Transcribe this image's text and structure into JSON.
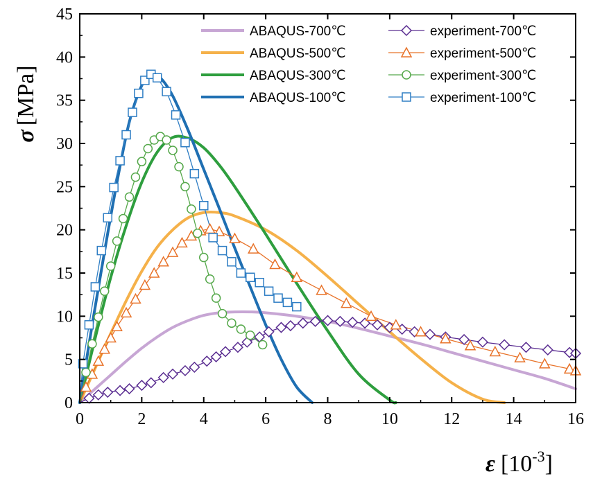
{
  "chart_data": {
    "type": "line",
    "xlabel_symbol": "ε",
    "xlabel_unit": "[10",
    "xlabel_exp": "-3",
    "xlabel_close": "]",
    "ylabel_symbol": "σ",
    "ylabel_unit": "[MPa]",
    "xlim": [
      0,
      16
    ],
    "ylim": [
      0,
      45
    ],
    "xticks": [
      0,
      2,
      4,
      6,
      8,
      10,
      12,
      14,
      16
    ],
    "yticks": [
      0,
      5,
      10,
      15,
      20,
      25,
      30,
      35,
      40,
      45
    ],
    "series": [
      {
        "name": "ABAQUS-700℃",
        "kind": "model",
        "color": "#c7a6d4",
        "x": [
          0,
          0.5,
          1,
          1.5,
          2,
          2.5,
          3,
          3.5,
          4,
          4.5,
          5,
          5.5,
          6,
          7,
          8,
          9,
          10,
          11,
          12,
          13,
          14,
          15,
          16
        ],
        "y": [
          0,
          1.6,
          3.2,
          4.8,
          6.3,
          7.6,
          8.7,
          9.5,
          10.1,
          10.4,
          10.5,
          10.5,
          10.4,
          10.0,
          9.4,
          8.6,
          7.7,
          6.8,
          5.8,
          4.8,
          3.8,
          2.8,
          1.6
        ]
      },
      {
        "name": "ABAQUS-500℃",
        "kind": "model",
        "color": "#f5b14a",
        "x": [
          0,
          0.5,
          1,
          1.5,
          2,
          2.5,
          3,
          3.5,
          4,
          4.5,
          5,
          6,
          7,
          8,
          9,
          10,
          11,
          12,
          13,
          13.7
        ],
        "y": [
          0,
          4,
          8,
          11.8,
          15.2,
          18.0,
          20.0,
          21.4,
          22.0,
          22.0,
          21.6,
          20.0,
          17.6,
          14.6,
          11.4,
          8.2,
          5.1,
          2.3,
          0.4,
          0
        ]
      },
      {
        "name": "ABAQUS-300℃",
        "kind": "model",
        "color": "#2e9e3e",
        "x": [
          0,
          0.5,
          1,
          1.5,
          2,
          2.5,
          3,
          3.5,
          4,
          4.5,
          5,
          6,
          7,
          8,
          9,
          10,
          10.2
        ],
        "y": [
          0,
          7.5,
          14.5,
          20.5,
          25.5,
          29.0,
          30.7,
          30.6,
          29.5,
          27.5,
          25.0,
          19.5,
          13.8,
          8.3,
          3.3,
          0.3,
          0
        ]
      },
      {
        "name": "ABAQUS-100℃",
        "kind": "model",
        "color": "#1f6fb2",
        "x": [
          0,
          0.4,
          0.8,
          1.2,
          1.6,
          2.0,
          2.3,
          2.6,
          3.0,
          3.5,
          4.0,
          4.5,
          5.0,
          5.5,
          6.0,
          6.5,
          7.0,
          7.5
        ],
        "y": [
          0,
          9.0,
          17.5,
          25.5,
          32.5,
          36.7,
          38.0,
          37.6,
          35.5,
          31.5,
          27.0,
          22.5,
          17.9,
          13.4,
          9.0,
          5.0,
          1.8,
          0
        ]
      },
      {
        "name": "experiment-700℃",
        "kind": "experiment",
        "color": "#5a2d91",
        "marker": "diamond",
        "x": [
          0,
          0.3,
          0.6,
          0.9,
          1.3,
          1.6,
          2.0,
          2.3,
          2.7,
          3.0,
          3.4,
          3.7,
          4.1,
          4.4,
          4.7,
          5.1,
          5.4,
          5.8,
          6.1,
          6.5,
          6.8,
          7.2,
          7.6,
          8.0,
          8.4,
          8.8,
          9.2,
          9.6,
          10.0,
          10.4,
          10.8,
          11.3,
          11.8,
          12.4,
          13.0,
          13.7,
          14.4,
          15.1,
          15.8,
          16.0
        ],
        "y": [
          0,
          0.5,
          0.9,
          1.2,
          1.4,
          1.6,
          2.0,
          2.3,
          2.9,
          3.3,
          3.7,
          4.1,
          4.8,
          5.3,
          5.9,
          6.4,
          7.0,
          7.6,
          8.2,
          8.7,
          8.9,
          9.2,
          9.4,
          9.5,
          9.4,
          9.3,
          9.2,
          9.0,
          8.7,
          8.5,
          8.2,
          7.9,
          7.6,
          7.3,
          7.0,
          6.7,
          6.4,
          6.1,
          5.8,
          5.7
        ]
      },
      {
        "name": "experiment-500℃",
        "kind": "experiment",
        "color": "#e8732a",
        "marker": "triangle",
        "x": [
          0,
          0.2,
          0.4,
          0.6,
          0.8,
          1.0,
          1.2,
          1.5,
          1.8,
          2.1,
          2.4,
          2.7,
          3.0,
          3.3,
          3.6,
          3.9,
          4.2,
          4.5,
          5.0,
          5.6,
          6.3,
          7.0,
          7.8,
          8.6,
          9.4,
          10.2,
          11.0,
          11.8,
          12.6,
          13.4,
          14.2,
          15.0,
          15.8,
          16.0
        ],
        "y": [
          0,
          1.8,
          3.3,
          4.8,
          6.2,
          7.5,
          8.8,
          10.4,
          12.0,
          13.6,
          15.0,
          16.3,
          17.4,
          18.5,
          19.3,
          19.9,
          20.1,
          19.8,
          19.0,
          17.8,
          16.0,
          14.5,
          13.0,
          11.5,
          10.0,
          9.0,
          8.2,
          7.4,
          6.6,
          5.9,
          5.2,
          4.5,
          3.9,
          3.7
        ]
      },
      {
        "name": "experiment-300℃",
        "kind": "experiment",
        "color": "#55a84a",
        "marker": "circle",
        "x": [
          0,
          0.2,
          0.4,
          0.6,
          0.8,
          1.0,
          1.2,
          1.4,
          1.6,
          1.8,
          2.0,
          2.2,
          2.4,
          2.6,
          2.8,
          3.0,
          3.2,
          3.4,
          3.6,
          3.8,
          4.0,
          4.2,
          4.4,
          4.6,
          4.9,
          5.2,
          5.5,
          5.9
        ],
        "y": [
          0,
          3.5,
          6.8,
          9.9,
          12.9,
          15.8,
          18.7,
          21.3,
          23.8,
          26.1,
          27.9,
          29.4,
          30.4,
          30.8,
          30.4,
          29.2,
          27.3,
          25.0,
          22.4,
          19.6,
          16.8,
          14.3,
          12.1,
          10.3,
          9.2,
          8.5,
          7.8,
          6.7
        ]
      },
      {
        "name": "experiment-100℃",
        "kind": "experiment",
        "color": "#2f7ec4",
        "marker": "square",
        "x": [
          0,
          0.1,
          0.3,
          0.5,
          0.7,
          0.9,
          1.1,
          1.3,
          1.5,
          1.7,
          1.9,
          2.1,
          2.3,
          2.5,
          2.8,
          3.1,
          3.4,
          3.7,
          4.0,
          4.3,
          4.6,
          4.9,
          5.2,
          5.5,
          5.8,
          6.1,
          6.4,
          6.7,
          7.0
        ],
        "y": [
          0,
          4.5,
          9.0,
          13.4,
          17.6,
          21.4,
          24.9,
          28.0,
          31.0,
          33.6,
          35.8,
          37.3,
          38.0,
          37.6,
          36.0,
          33.3,
          30.1,
          26.5,
          22.8,
          19.1,
          17.6,
          16.3,
          15.0,
          14.5,
          13.9,
          12.9,
          12.1,
          11.6,
          11.1
        ]
      }
    ],
    "legend_position": "top-right",
    "legend_columns": [
      [
        "ABAQUS-700℃",
        "ABAQUS-500℃",
        "ABAQUS-300℃",
        "ABAQUS-100℃"
      ],
      [
        "experiment-700℃",
        "experiment-500℃",
        "experiment-300℃",
        "experiment-100℃"
      ]
    ]
  }
}
